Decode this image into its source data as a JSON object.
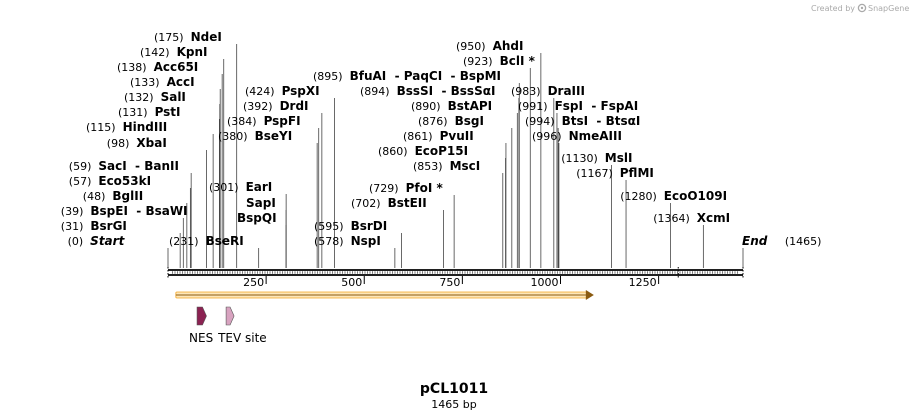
{
  "plasmid": {
    "name": "pCL1011",
    "length": 1465,
    "length_label": "1465 bp"
  },
  "credit": {
    "prefix": "Created by",
    "brand": "SnapGene"
  },
  "ruler": {
    "ticks": [
      250,
      500,
      750,
      1000,
      1250
    ]
  },
  "sites": [
    {
      "pos_label": "(0)",
      "names": [
        "Start"
      ],
      "site": 0,
      "italic": true
    },
    {
      "pos_label": "(31)",
      "names": [
        "BsrGI"
      ],
      "site": 31
    },
    {
      "pos_label": "(39)",
      "names": [
        "BspEI",
        "BsaWI"
      ],
      "site": 39
    },
    {
      "pos_label": "(48)",
      "names": [
        "BglII"
      ],
      "site": 48
    },
    {
      "pos_label": "(57)",
      "names": [
        "Eco53kI"
      ],
      "site": 57
    },
    {
      "pos_label": "(59)",
      "names": [
        "SacI",
        "BanII"
      ],
      "site": 59
    },
    {
      "pos_label": "(98)",
      "names": [
        "XbaI"
      ],
      "site": 98
    },
    {
      "pos_label": "(115)",
      "names": [
        "HindIII"
      ],
      "site": 115
    },
    {
      "pos_label": "(131)",
      "names": [
        "PstI"
      ],
      "site": 131
    },
    {
      "pos_label": "(132)",
      "names": [
        "SalI"
      ],
      "site": 132
    },
    {
      "pos_label": "(133)",
      "names": [
        "AccI"
      ],
      "site": 133
    },
    {
      "pos_label": "(138)",
      "names": [
        "Acc65I"
      ],
      "site": 138
    },
    {
      "pos_label": "(142)",
      "names": [
        "KpnI"
      ],
      "site": 142
    },
    {
      "pos_label": "(175)",
      "names": [
        "NdeI"
      ],
      "site": 175
    },
    {
      "pos_label": "(231)",
      "names": [
        "BseRI"
      ],
      "site": 231
    },
    {
      "pos_label": "(301)",
      "names": [
        "EarI"
      ],
      "site": 301
    },
    {
      "pos_label": "",
      "names": [
        "SapI"
      ],
      "site": 301
    },
    {
      "pos_label": "",
      "names": [
        "BspQI"
      ],
      "site": 301
    },
    {
      "pos_label": "(380)",
      "names": [
        "BseYI"
      ],
      "site": 380
    },
    {
      "pos_label": "(384)",
      "names": [
        "PspFI"
      ],
      "site": 384
    },
    {
      "pos_label": "(392)",
      "names": [
        "DrdI"
      ],
      "site": 392
    },
    {
      "pos_label": "(424)",
      "names": [
        "PspXI"
      ],
      "site": 424
    },
    {
      "pos_label": "(578)",
      "names": [
        "NspI"
      ],
      "site": 578
    },
    {
      "pos_label": "(595)",
      "names": [
        "BsrDI"
      ],
      "site": 595
    },
    {
      "pos_label": "(702)",
      "names": [
        "BstEII"
      ],
      "site": 702
    },
    {
      "pos_label": "(729)",
      "names": [
        "PfoI *"
      ],
      "site": 729
    },
    {
      "pos_label": "(853)",
      "names": [
        "MscI"
      ],
      "site": 853
    },
    {
      "pos_label": "(860)",
      "names": [
        "EcoP15I"
      ],
      "site": 860
    },
    {
      "pos_label": "(861)",
      "names": [
        "PvuII"
      ],
      "site": 861
    },
    {
      "pos_label": "(876)",
      "names": [
        "BsgI"
      ],
      "site": 876
    },
    {
      "pos_label": "(890)",
      "names": [
        "BstAPI"
      ],
      "site": 890
    },
    {
      "pos_label": "(894)",
      "names": [
        "BssSI",
        "BssSαI"
      ],
      "site": 894
    },
    {
      "pos_label": "(895)",
      "names": [
        "BfuAI",
        "PaqCI",
        "BspMI"
      ],
      "site": 895
    },
    {
      "pos_label": "(923)",
      "names": [
        "BclI *"
      ],
      "site": 923
    },
    {
      "pos_label": "(950)",
      "names": [
        "AhdI"
      ],
      "site": 950
    },
    {
      "pos_label": "(983)",
      "names": [
        "DraIII"
      ],
      "site": 983
    },
    {
      "pos_label": "(991)",
      "names": [
        "FspI",
        "FspAI"
      ],
      "site": 991
    },
    {
      "pos_label": "(994)",
      "names": [
        "BtsI",
        "BtsαI"
      ],
      "site": 994
    },
    {
      "pos_label": "(996)",
      "names": [
        "NmeAIII"
      ],
      "site": 996
    },
    {
      "pos_label": "(1130)",
      "names": [
        "MslI"
      ],
      "site": 1130
    },
    {
      "pos_label": "(1167)",
      "names": [
        "PflMI"
      ],
      "site": 1167
    },
    {
      "pos_label": "(1280)",
      "names": [
        "EcoO109I"
      ],
      "site": 1280
    },
    {
      "pos_label": "(1364)",
      "names": [
        "XcmI"
      ],
      "site": 1364
    },
    {
      "pos_label": "(1465)",
      "names": [
        "End"
      ],
      "site": 1465,
      "italic": true
    }
  ],
  "features": [
    {
      "name": "NES",
      "start": 74,
      "end": 98,
      "color": "#8b2252"
    },
    {
      "name": "TEV site",
      "start": 148,
      "end": 168,
      "color": "#d8a3c0"
    }
  ],
  "orf": {
    "start": 20,
    "end": 1085,
    "color": "#f5a623"
  },
  "colors": {
    "line": "#444444",
    "sequence": "#000000"
  }
}
